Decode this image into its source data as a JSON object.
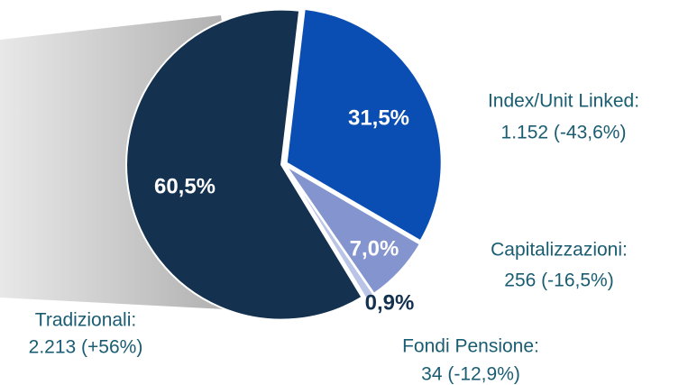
{
  "chart_data": {
    "type": "pie",
    "categories": [
      "Index/Unit Linked:",
      "Capitalizzazioni:",
      "Fondi Pensione:",
      "Tradizionali:"
    ],
    "details": [
      "1.152 (-43,6%)",
      "256 (-16,5%)",
      "34 (-12,9%)",
      "2.213 (+56%)"
    ],
    "values": [
      31.5,
      7.0,
      0.9,
      60.5
    ],
    "value_labels": [
      "31,5%",
      "7,0%",
      "0,9%",
      "60,5%"
    ],
    "colors": [
      "#0a4db3",
      "#8394cf",
      "#b9c4e6",
      "#14324f"
    ]
  }
}
